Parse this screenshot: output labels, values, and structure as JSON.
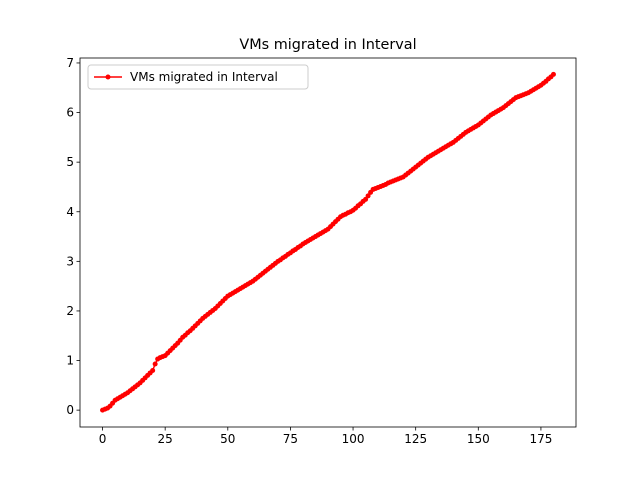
{
  "chart_data": {
    "type": "line",
    "title": "VMs migrated in Interval",
    "legend": "upper left",
    "xlim": [
      -9,
      189
    ],
    "ylim": [
      -0.34,
      7.1
    ],
    "xticks": [
      0,
      25,
      50,
      75,
      100,
      125,
      150,
      175
    ],
    "yticks": [
      0,
      1,
      2,
      3,
      4,
      5,
      6,
      7
    ],
    "x": [
      0,
      1,
      2,
      3,
      4,
      5,
      6,
      7,
      8,
      9,
      10,
      11,
      12,
      13,
      14,
      15,
      16,
      17,
      18,
      19,
      20,
      21,
      22,
      23,
      24,
      25,
      26,
      27,
      28,
      29,
      30,
      31,
      32,
      33,
      34,
      35,
      36,
      37,
      38,
      39,
      40,
      41,
      42,
      43,
      44,
      45,
      46,
      47,
      48,
      49,
      50,
      51,
      52,
      53,
      54,
      55,
      56,
      57,
      58,
      59,
      60,
      61,
      62,
      63,
      64,
      65,
      66,
      67,
      68,
      69,
      70,
      71,
      72,
      73,
      74,
      75,
      76,
      77,
      78,
      79,
      80,
      81,
      82,
      83,
      84,
      85,
      86,
      87,
      88,
      89,
      90,
      91,
      92,
      93,
      94,
      95,
      96,
      97,
      98,
      99,
      100,
      101,
      102,
      103,
      104,
      105,
      106,
      107,
      108,
      109,
      110,
      111,
      112,
      113,
      114,
      115,
      116,
      117,
      118,
      119,
      120,
      121,
      122,
      123,
      124,
      125,
      126,
      127,
      128,
      129,
      130,
      131,
      132,
      133,
      134,
      135,
      136,
      137,
      138,
      139,
      140,
      141,
      142,
      143,
      144,
      145,
      146,
      147,
      148,
      149,
      150,
      151,
      152,
      153,
      154,
      155,
      156,
      157,
      158,
      159,
      160,
      161,
      162,
      163,
      164,
      165,
      166,
      167,
      168,
      169,
      170,
      171,
      172,
      173,
      174,
      175,
      176,
      177,
      178,
      179,
      180
    ],
    "series": [
      {
        "name": "VMs migrated in Interval",
        "color": "#ff0000",
        "values": [
          0,
          0.02,
          0.04,
          0.08,
          0.14,
          0.2,
          0.23,
          0.26,
          0.29,
          0.32,
          0.35,
          0.39,
          0.43,
          0.47,
          0.51,
          0.55,
          0.6,
          0.65,
          0.7,
          0.75,
          0.8,
          0.93,
          1.03,
          1.06,
          1.08,
          1.1,
          1.15,
          1.2,
          1.25,
          1.3,
          1.35,
          1.41,
          1.47,
          1.51,
          1.56,
          1.6,
          1.65,
          1.7,
          1.75,
          1.8,
          1.85,
          1.89,
          1.93,
          1.97,
          2.01,
          2.05,
          2.1,
          2.15,
          2.2,
          2.25,
          2.3,
          2.33,
          2.36,
          2.39,
          2.42,
          2.45,
          2.48,
          2.51,
          2.54,
          2.57,
          2.6,
          2.64,
          2.68,
          2.72,
          2.76,
          2.8,
          2.84,
          2.88,
          2.92,
          2.96,
          3.0,
          3.03,
          3.07,
          3.1,
          3.14,
          3.17,
          3.21,
          3.24,
          3.28,
          3.31,
          3.35,
          3.38,
          3.41,
          3.44,
          3.47,
          3.5,
          3.53,
          3.56,
          3.59,
          3.62,
          3.65,
          3.7,
          3.75,
          3.8,
          3.85,
          3.9,
          3.93,
          3.95,
          3.98,
          4.0,
          4.03,
          4.07,
          4.12,
          4.16,
          4.21,
          4.25,
          4.32,
          4.39,
          4.45,
          4.47,
          4.49,
          4.51,
          4.53,
          4.55,
          4.58,
          4.6,
          4.62,
          4.64,
          4.66,
          4.68,
          4.7,
          4.74,
          4.78,
          4.82,
          4.86,
          4.9,
          4.94,
          4.98,
          5.02,
          5.06,
          5.1,
          5.13,
          5.16,
          5.19,
          5.22,
          5.25,
          5.28,
          5.31,
          5.34,
          5.37,
          5.4,
          5.44,
          5.48,
          5.52,
          5.56,
          5.6,
          5.63,
          5.66,
          5.69,
          5.72,
          5.75,
          5.79,
          5.83,
          5.87,
          5.91,
          5.95,
          5.98,
          6.01,
          6.04,
          6.07,
          6.1,
          6.14,
          6.18,
          6.22,
          6.26,
          6.3,
          6.32,
          6.34,
          6.36,
          6.38,
          6.4,
          6.43,
          6.46,
          6.49,
          6.52,
          6.55,
          6.59,
          6.63,
          6.68,
          6.72,
          6.77
        ]
      }
    ]
  }
}
